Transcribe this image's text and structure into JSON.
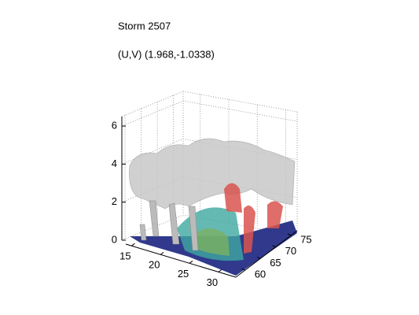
{
  "chart_data": {
    "type": "surface3d",
    "title": "Storm 2507",
    "subtitle": "(U,V) (1.968,-1.0338)",
    "xlim": [
      14,
      33
    ],
    "xticks": [
      15,
      20,
      25,
      30
    ],
    "ylim": [
      57,
      77
    ],
    "yticks": [
      60,
      65,
      70,
      75
    ],
    "zlim": [
      0,
      6.5
    ],
    "zticks": [
      0,
      2,
      4,
      6
    ],
    "grid": true
  }
}
